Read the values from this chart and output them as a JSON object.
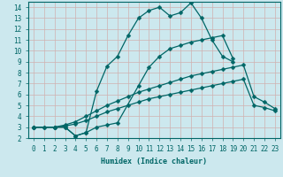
{
  "bg_color": "#cce8ee",
  "grid_color": "#b0d4da",
  "line_color": "#006666",
  "xlabel": "Humidex (Indice chaleur)",
  "xlim": [
    -0.5,
    23.5
  ],
  "ylim": [
    2,
    14.5
  ],
  "xticks": [
    0,
    1,
    2,
    3,
    4,
    5,
    6,
    7,
    8,
    9,
    10,
    11,
    12,
    13,
    14,
    15,
    16,
    17,
    18,
    19,
    20,
    21,
    22,
    23
  ],
  "yticks": [
    2,
    3,
    4,
    5,
    6,
    7,
    8,
    9,
    10,
    11,
    12,
    13,
    14
  ],
  "curve1_x": [
    0,
    1,
    2,
    3,
    4,
    5,
    6,
    7,
    8,
    10,
    11,
    12,
    13,
    14,
    15,
    16,
    17,
    18,
    19
  ],
  "curve1_y": [
    3.0,
    3.0,
    3.0,
    3.0,
    2.2,
    2.5,
    3.0,
    3.2,
    3.4,
    6.8,
    8.5,
    9.5,
    10.2,
    10.5,
    10.8,
    11.0,
    11.2,
    11.4,
    9.3
  ],
  "curve2_x": [
    0,
    2,
    3,
    4,
    5,
    6,
    7,
    8,
    9,
    10,
    11,
    12,
    13,
    14,
    15,
    16,
    17,
    18,
    19,
    20,
    21,
    22,
    23
  ],
  "curve2_y": [
    3.0,
    3.0,
    3.2,
    3.5,
    4.0,
    4.5,
    5.0,
    5.4,
    5.8,
    6.2,
    6.5,
    6.8,
    7.1,
    7.4,
    7.7,
    7.9,
    8.1,
    8.3,
    8.5,
    8.7,
    5.8,
    5.3,
    4.7
  ],
  "curve3_x": [
    0,
    2,
    3,
    4,
    5,
    6,
    7,
    8,
    9,
    10,
    11,
    12,
    13,
    14,
    15,
    16,
    17,
    18,
    19,
    20,
    21,
    22,
    23
  ],
  "curve3_y": [
    3.0,
    3.0,
    3.1,
    3.3,
    3.6,
    4.0,
    4.4,
    4.7,
    5.0,
    5.3,
    5.6,
    5.8,
    6.0,
    6.2,
    6.4,
    6.6,
    6.8,
    7.0,
    7.2,
    7.4,
    5.0,
    4.8,
    4.5
  ],
  "curve4_x": [
    0,
    1,
    2,
    3,
    4,
    5,
    6,
    7,
    8,
    9,
    10,
    11,
    12,
    13,
    14,
    15,
    16,
    17,
    18,
    19
  ],
  "curve4_y": [
    3.0,
    3.0,
    3.0,
    3.0,
    2.2,
    2.5,
    6.3,
    8.6,
    9.5,
    11.4,
    13.0,
    13.7,
    14.0,
    13.2,
    13.5,
    14.4,
    13.0,
    11.0,
    9.5,
    9.0
  ]
}
